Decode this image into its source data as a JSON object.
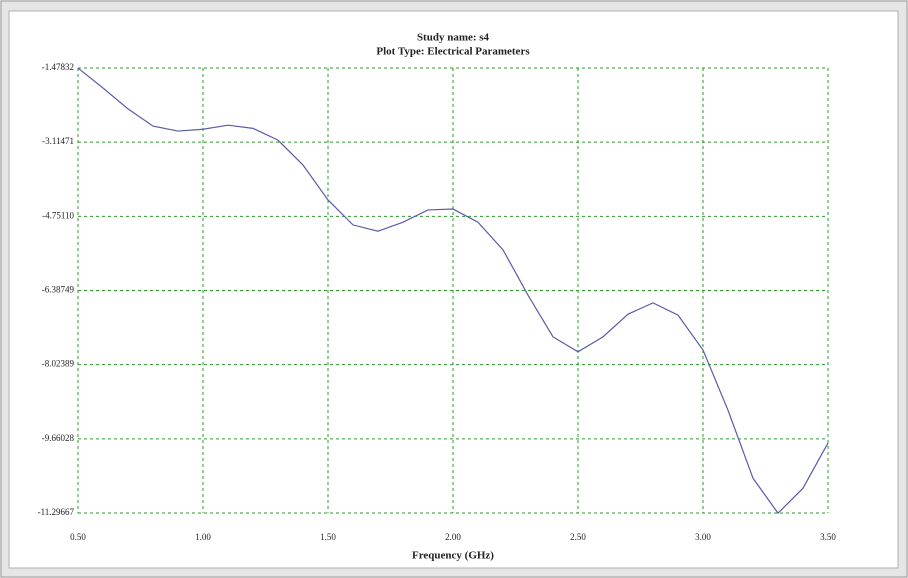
{
  "chart_data": {
    "type": "line",
    "title": "Study name: s4",
    "subtitle": "Plot Type: Electrical Parameters",
    "x_label": "Frequency (GHz)",
    "x": [
      0.5,
      0.6,
      0.7,
      0.8,
      0.9,
      1.0,
      1.1,
      1.2,
      1.3,
      1.4,
      1.5,
      1.6,
      1.7,
      1.8,
      1.9,
      2.0,
      2.1,
      2.2,
      2.3,
      2.4,
      2.5,
      2.6,
      2.7,
      2.8,
      2.9,
      3.0,
      3.1,
      3.2,
      3.3,
      3.4,
      3.5
    ],
    "series": [
      {
        "color": "#5a5ca8",
        "values": [
          -1.48,
          -1.92,
          -2.38,
          -2.76,
          -2.87,
          -2.83,
          -2.74,
          -2.81,
          -3.07,
          -3.62,
          -4.39,
          -4.94,
          -5.08,
          -4.88,
          -4.61,
          -4.59,
          -4.88,
          -5.49,
          -6.49,
          -7.41,
          -7.74,
          -7.41,
          -6.91,
          -6.66,
          -6.93,
          -7.7,
          -9.03,
          -10.53,
          -11.3,
          -10.75,
          -9.75
        ]
      }
    ],
    "xlim": [
      0.5,
      3.5
    ],
    "xticks": [
      {
        "value": 0.5,
        "label": "0.50"
      },
      {
        "value": 1.0,
        "label": "1.00"
      },
      {
        "value": 1.5,
        "label": "1.50"
      },
      {
        "value": 2.0,
        "label": "2.00"
      },
      {
        "value": 2.5,
        "label": "2.50"
      },
      {
        "value": 3.0,
        "label": "3.00"
      },
      {
        "value": 3.5,
        "label": "3.50"
      }
    ],
    "ylim": [
      -11.29667,
      -1.47832
    ],
    "yticks": [
      -1.47832,
      -3.11471,
      {
        "value": -4.7511,
        "label": "-4.75110"
      },
      -6.38749,
      -8.02389,
      -9.66028,
      -11.29667
    ],
    "grid": true,
    "grid_color": "#2e9a2e"
  }
}
